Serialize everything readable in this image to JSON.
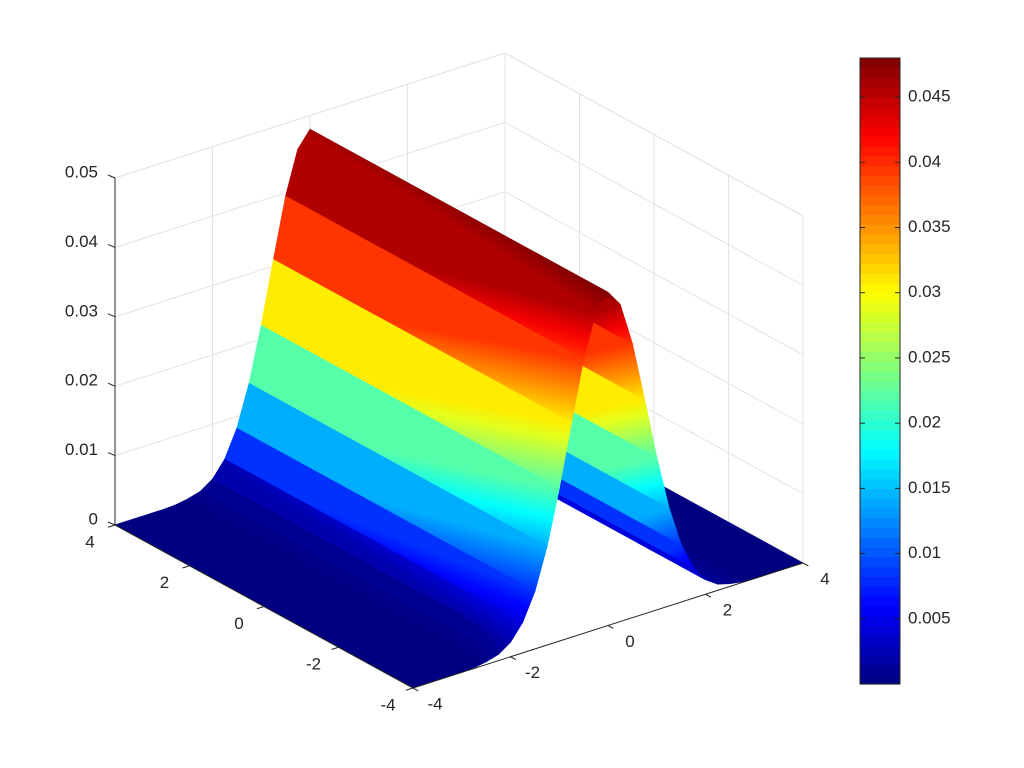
{
  "chart_data": {
    "type": "surface",
    "colormap": "jet",
    "x": [
      -4,
      -3.75,
      -3.5,
      -3.25,
      -3,
      -2.75,
      -2.5,
      -2.25,
      -2,
      -1.75,
      -1.5,
      -1.25,
      -1,
      -0.75,
      -0.5,
      -0.25,
      0,
      0.25,
      0.5,
      0.75,
      1,
      1.25,
      1.5,
      1.75,
      2,
      2.25,
      2.5,
      2.75,
      3,
      3.25,
      3.5,
      3.75,
      4
    ],
    "values": [
      0,
      0,
      0,
      0,
      0,
      0.0001,
      0.0004,
      0.0009,
      0.0021,
      0.0044,
      0.0083,
      0.0142,
      0.022,
      0.0309,
      0.0395,
      0.0457,
      0.048,
      0.0457,
      0.0395,
      0.0309,
      0.022,
      0.0142,
      0.0083,
      0.0044,
      0.0021,
      0.0009,
      0.0004,
      0.0001,
      0,
      0,
      0,
      0,
      0
    ],
    "xlim": [
      -4,
      4
    ],
    "ylim": [
      -4,
      4
    ],
    "zlim": [
      0,
      0.05
    ],
    "xticks": [
      -4,
      -2,
      0,
      2,
      4
    ],
    "yticks": [
      -4,
      -2,
      0,
      2,
      4
    ],
    "zticks": [
      0,
      0.01,
      0.02,
      0.03,
      0.04,
      0.05
    ],
    "grid": true,
    "colorbar": true,
    "clim": [
      0,
      0.048
    ],
    "cticks": [
      0.005,
      0.01,
      0.015,
      0.02,
      0.025,
      0.03,
      0.035,
      0.04,
      0.045
    ]
  }
}
